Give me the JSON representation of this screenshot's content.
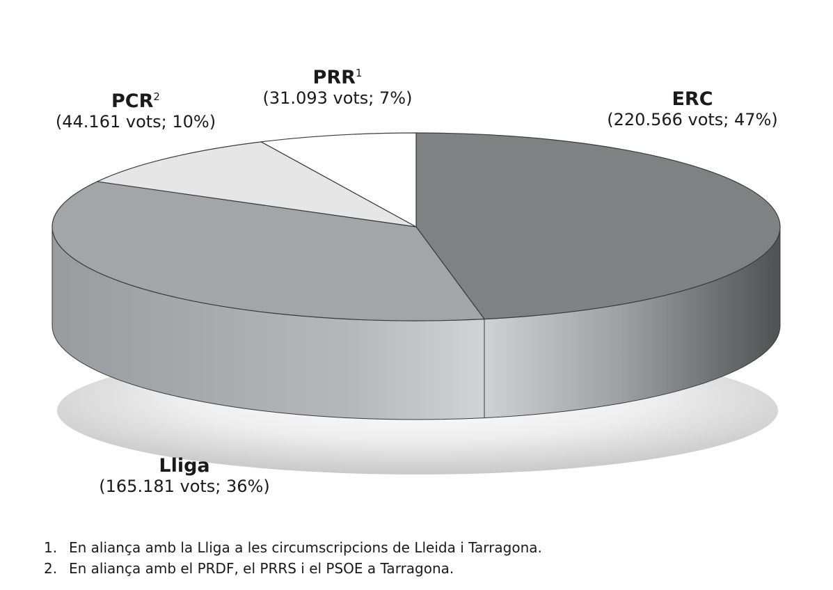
{
  "chart_data": {
    "type": "pie",
    "style": "3d",
    "slices": [
      {
        "label": "ERC",
        "sup": "",
        "votes": "220.566",
        "percent": 47,
        "detail": "(220.566 vots; 47%)",
        "color": "#808183"
      },
      {
        "label": "Lliga",
        "sup": "",
        "votes": "165.181",
        "percent": 36,
        "detail": "(165.181 vots; 36%)",
        "color": "#a4a5a8"
      },
      {
        "label": "PCR",
        "sup": "2",
        "votes": "44.161",
        "percent": 10,
        "detail": "(44.161 vots; 10%)",
        "color": "#e6e6e6"
      },
      {
        "label": "PRR",
        "sup": "1",
        "votes": "31.093",
        "percent": 7,
        "detail": "(31.093 vots; 7%)",
        "color": "#ffffff"
      }
    ]
  },
  "footnotes": [
    {
      "num": "1.",
      "text": "En aliança amb la Lliga a les circumscripcions de Lleida i Tarragona."
    },
    {
      "num": "2.",
      "text": "En aliança amb el PRDF, el PRRS i el PSOE a Tarragona."
    }
  ]
}
